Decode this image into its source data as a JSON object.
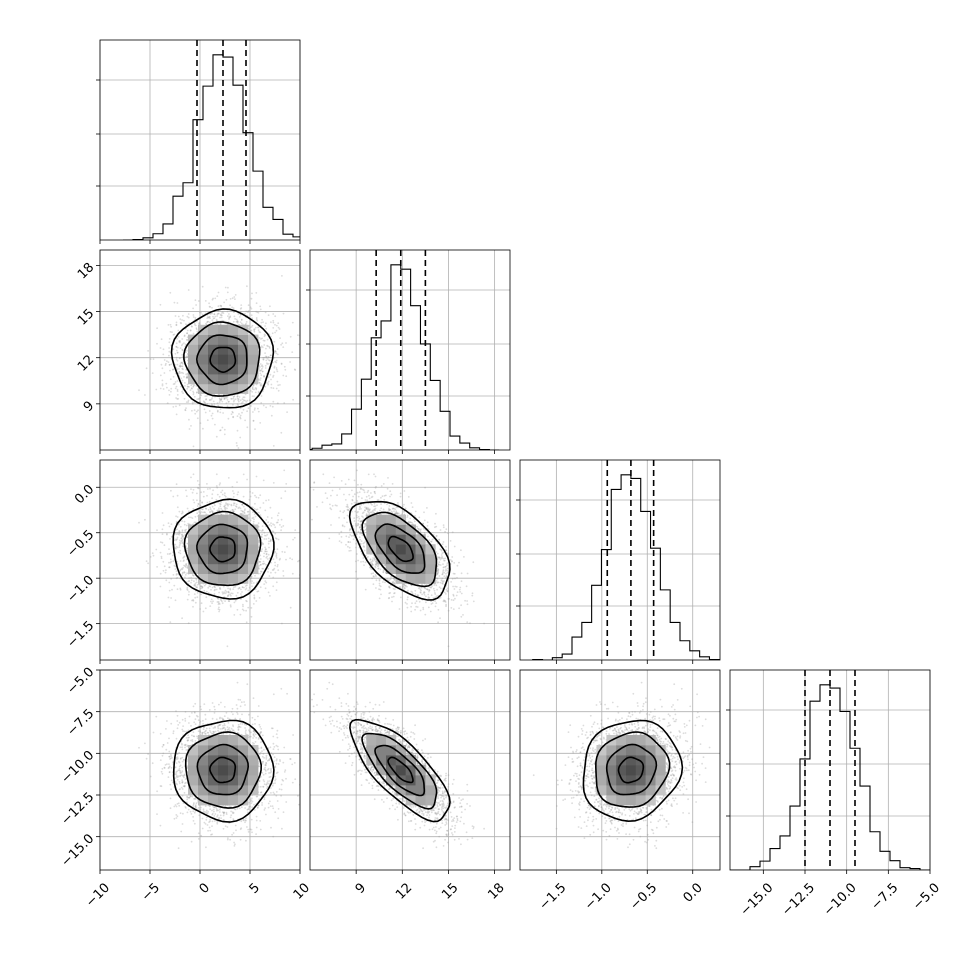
{
  "chart_data": {
    "type": "corner",
    "parameters": [
      {
        "name": "",
        "range": [
          -10,
          10
        ],
        "ticks": [
          -10,
          -5,
          0,
          5,
          10
        ],
        "tick_labels": [
          "−10",
          "−5",
          "0",
          "5",
          "10"
        ],
        "mean": 2.3,
        "sd": 2.5,
        "quantiles": [
          -0.3,
          2.3,
          4.6
        ]
      },
      {
        "name": "",
        "range": [
          6,
          19
        ],
        "ticks": [
          9,
          12,
          15,
          18
        ],
        "tick_labels": [
          "9",
          "12",
          "15",
          "18"
        ],
        "mean": 11.9,
        "sd": 1.6,
        "quantiles": [
          10.3,
          11.9,
          13.5
        ]
      },
      {
        "name": "",
        "range": [
          -1.9,
          0.3
        ],
        "ticks": [
          -1.5,
          -1.0,
          -0.5,
          0.0
        ],
        "tick_labels": [
          "−1.5",
          "−1.0",
          "−0.5",
          "0.0"
        ],
        "mean": -0.68,
        "sd": 0.27,
        "quantiles": [
          -0.94,
          -0.68,
          -0.43
        ]
      },
      {
        "name": "",
        "range": [
          -17,
          -5
        ],
        "ticks": [
          -15.0,
          -12.5,
          -10.0,
          -7.5,
          -5.0
        ],
        "tick_labels": [
          "−15.0",
          "−12.5",
          "−10.0",
          "−7.5",
          "−5.0"
        ],
        "mean": -11.0,
        "sd": 1.5,
        "quantiles": [
          -12.5,
          -11.0,
          -9.5
        ]
      }
    ],
    "correlations": [
      [
        1,
        0,
        0,
        0
      ],
      [
        0,
        1,
        -0.55,
        -0.75
      ],
      [
        0,
        -0.55,
        1,
        0.1
      ],
      [
        0,
        -0.75,
        0.1,
        1
      ]
    ],
    "histogram_bins": 20,
    "contour_levels": [
      0.118,
      0.393,
      0.675,
      0.865
    ],
    "grid": true,
    "quantile_lines": "dashed",
    "colors": {
      "ink": "#000000",
      "scatter": "#9a9a9a",
      "grid": "#b0b0b0"
    }
  }
}
